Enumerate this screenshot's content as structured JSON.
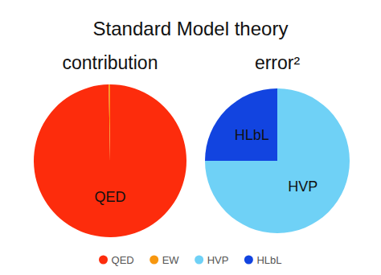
{
  "chart_data": {
    "type": "pie",
    "title": "Standard Model theory",
    "categories": [
      "QED",
      "EW",
      "HVP",
      "HLbL"
    ],
    "colors": [
      "#fd2c0c",
      "#f7970f",
      "#6fd1f6",
      "#1244e0"
    ],
    "legend": "bottom",
    "series": [
      {
        "name": "contribution",
        "values": [
          99.7,
          0.3,
          0,
          0
        ]
      },
      {
        "name": "error²",
        "values": [
          0,
          0,
          75,
          25
        ]
      }
    ]
  }
}
